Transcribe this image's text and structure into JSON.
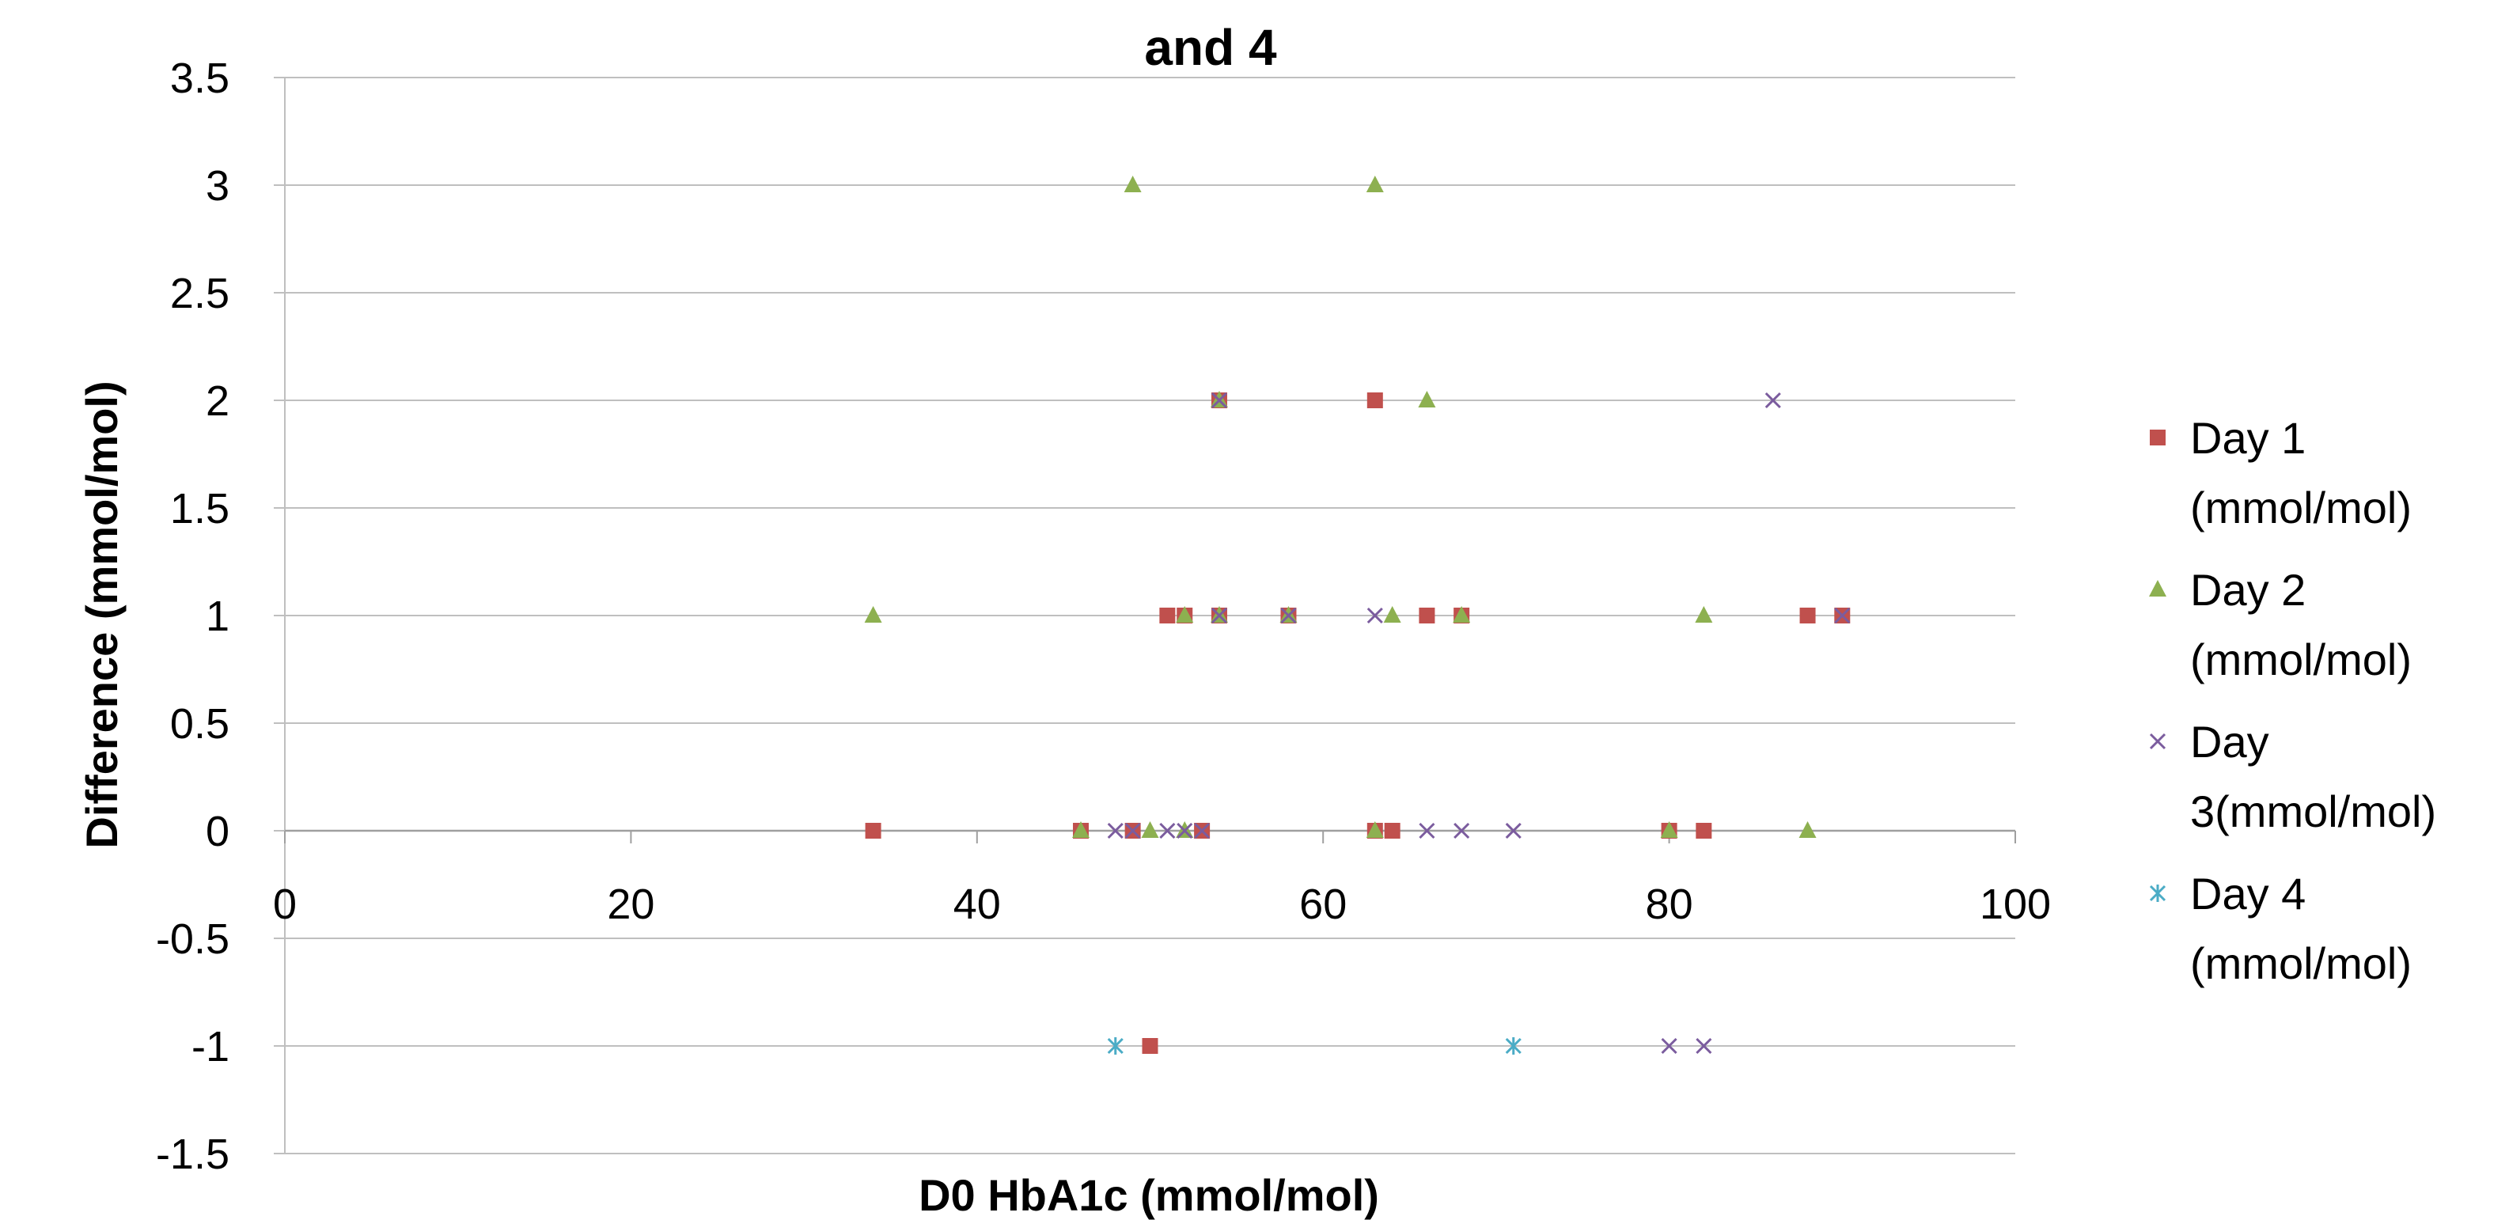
{
  "chart_data": {
    "type": "scatter",
    "title": "and 4",
    "xlabel": "D0 HbA1c (mmol/mol)",
    "ylabel": "Difference  (mmol/mol)",
    "xlim": [
      0,
      100
    ],
    "ylim": [
      -1.5,
      3.5
    ],
    "x_ticks": [
      0,
      20,
      40,
      60,
      80,
      100
    ],
    "y_ticks": [
      3.5,
      3,
      2.5,
      2,
      1.5,
      1,
      0.5,
      0,
      -0.5,
      -1,
      -1.5
    ],
    "x_tick_labels": [
      "0",
      "20",
      "40",
      "60",
      "80",
      "100"
    ],
    "y_tick_labels": [
      "3.5",
      "3",
      "2.5",
      "2",
      "1.5",
      "1",
      "0.5",
      "0",
      "-0.5",
      "-1",
      "-1.5"
    ],
    "grid": "horizontal",
    "legend_position": "right",
    "series": [
      {
        "name_lines": [
          " Day 1",
          "(mmol/mol)"
        ],
        "marker": "square",
        "color": "#C0504D",
        "points": [
          [
            34,
            0
          ],
          [
            46,
            0
          ],
          [
            49,
            0
          ],
          [
            53,
            0
          ],
          [
            63,
            0
          ],
          [
            64,
            0
          ],
          [
            80,
            0
          ],
          [
            82,
            0
          ],
          [
            51,
            1
          ],
          [
            52,
            1
          ],
          [
            54,
            1
          ],
          [
            58,
            1
          ],
          [
            66,
            1
          ],
          [
            68,
            1
          ],
          [
            88,
            1
          ],
          [
            90,
            1
          ],
          [
            54,
            2
          ],
          [
            63,
            2
          ],
          [
            50,
            -1
          ]
        ]
      },
      {
        "name_lines": [
          "Day 2",
          "(mmol/mol)"
        ],
        "marker": "triangle",
        "color": "#8DB050",
        "points": [
          [
            46,
            0
          ],
          [
            50,
            0
          ],
          [
            52,
            0
          ],
          [
            63,
            0
          ],
          [
            80,
            0
          ],
          [
            88,
            0
          ],
          [
            34,
            1
          ],
          [
            52,
            1
          ],
          [
            54,
            1
          ],
          [
            58,
            1
          ],
          [
            64,
            1
          ],
          [
            68,
            1
          ],
          [
            82,
            1
          ],
          [
            54,
            2
          ],
          [
            66,
            2
          ],
          [
            49,
            3
          ],
          [
            63,
            3
          ]
        ]
      },
      {
        "name_lines": [
          "Day",
          "3(mmol/mol)"
        ],
        "marker": "x",
        "color": "#7B5C9E",
        "points": [
          [
            48,
            0
          ],
          [
            49,
            0
          ],
          [
            51,
            0
          ],
          [
            52,
            0
          ],
          [
            53,
            0
          ],
          [
            66,
            0
          ],
          [
            68,
            0
          ],
          [
            71,
            0
          ],
          [
            54,
            1
          ],
          [
            58,
            1
          ],
          [
            63,
            1
          ],
          [
            90,
            1
          ],
          [
            54,
            2
          ],
          [
            86,
            2
          ],
          [
            80,
            -1
          ],
          [
            82,
            -1
          ]
        ]
      },
      {
        "name_lines": [
          "Day 4",
          "(mmol/mol)"
        ],
        "marker": "star",
        "color": "#4BACC6",
        "points": [
          [
            48,
            -1
          ],
          [
            71,
            -1
          ]
        ]
      }
    ]
  }
}
